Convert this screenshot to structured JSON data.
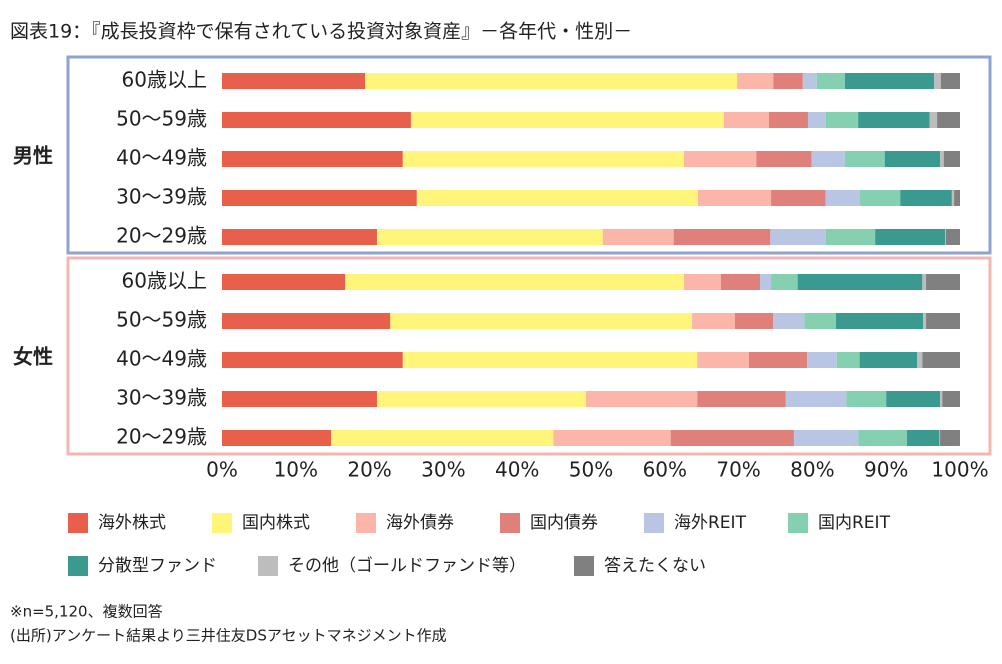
{
  "chart_data": {
    "type": "stacked-bar-horizontal",
    "title": "図表19：『成長投資枠で保有されている投資対象資産』－各年代・性別－",
    "groups": [
      {
        "name": "男性",
        "color": "#8ea3cf",
        "categories": [
          "60歳以上",
          "50～59歳",
          "40～49歳",
          "30～39歳",
          "20～29歳"
        ]
      },
      {
        "name": "女性",
        "color": "#f5b5b3",
        "categories": [
          "60歳以上",
          "50～59歳",
          "40～49歳",
          "30～39歳",
          "20～29歳"
        ]
      }
    ],
    "series": [
      {
        "name": "海外株式",
        "color": "#e8604c",
        "values": [
          19.4,
          25.6,
          24.5,
          26.4,
          21.0,
          16.7,
          22.8,
          24.5,
          21.0,
          14.8
        ]
      },
      {
        "name": "国内株式",
        "color": "#fff57a",
        "values": [
          50.4,
          42.4,
          38.1,
          38.1,
          30.6,
          45.9,
          40.9,
          39.9,
          28.3,
          30.1
        ]
      },
      {
        "name": "海外債券",
        "color": "#fbb5a9",
        "values": [
          4.9,
          6.1,
          9.8,
          9.9,
          9.6,
          5.0,
          5.8,
          7.0,
          15.1,
          15.9
        ]
      },
      {
        "name": "国内債券",
        "color": "#e0807a",
        "values": [
          4.0,
          5.3,
          7.5,
          7.4,
          13.1,
          5.3,
          5.2,
          7.9,
          12.0,
          16.7
        ]
      },
      {
        "name": "海外REIT",
        "color": "#b8c6e4",
        "values": [
          1.9,
          2.4,
          4.5,
          4.6,
          7.5,
          1.5,
          4.2,
          4.0,
          8.2,
          8.7
        ]
      },
      {
        "name": "国内REIT",
        "color": "#86d0b2",
        "values": [
          3.8,
          4.4,
          5.4,
          5.5,
          6.7,
          3.6,
          4.3,
          3.1,
          5.4,
          6.6
        ]
      },
      {
        "name": "分散型ファンド",
        "color": "#3b9a8f",
        "values": [
          12.1,
          9.7,
          7.5,
          7.0,
          9.5,
          16.9,
          11.8,
          7.8,
          7.3,
          4.4
        ]
      },
      {
        "name": "その他（ゴールドファンド等）",
        "color": "#bdbdbd",
        "values": [
          0.9,
          1.0,
          0.5,
          0.3,
          0.1,
          0.5,
          0.4,
          0.7,
          0.3,
          0.1
        ]
      },
      {
        "name": "答えたくない",
        "color": "#808080",
        "values": [
          2.6,
          3.1,
          2.2,
          0.8,
          1.9,
          4.6,
          4.6,
          5.1,
          2.4,
          2.7
        ]
      }
    ],
    "xlim": [
      0,
      100
    ],
    "xticks": [
      {
        "value": 0,
        "label": "0%"
      },
      {
        "value": 10,
        "label": "10%"
      },
      {
        "value": 20,
        "label": "20%"
      },
      {
        "value": 30,
        "label": "30%"
      },
      {
        "value": 40,
        "label": "40%"
      },
      {
        "value": 50,
        "label": "50%"
      },
      {
        "value": 60,
        "label": "60%"
      },
      {
        "value": 70,
        "label": "70%"
      },
      {
        "value": 80,
        "label": "80%"
      },
      {
        "value": 90,
        "label": "90%"
      },
      {
        "value": 100,
        "label": "100%"
      }
    ],
    "notes": [
      "※n=5,120、複数回答",
      "(出所)アンケート結果より三井住友DSアセットマネジメント作成"
    ]
  }
}
